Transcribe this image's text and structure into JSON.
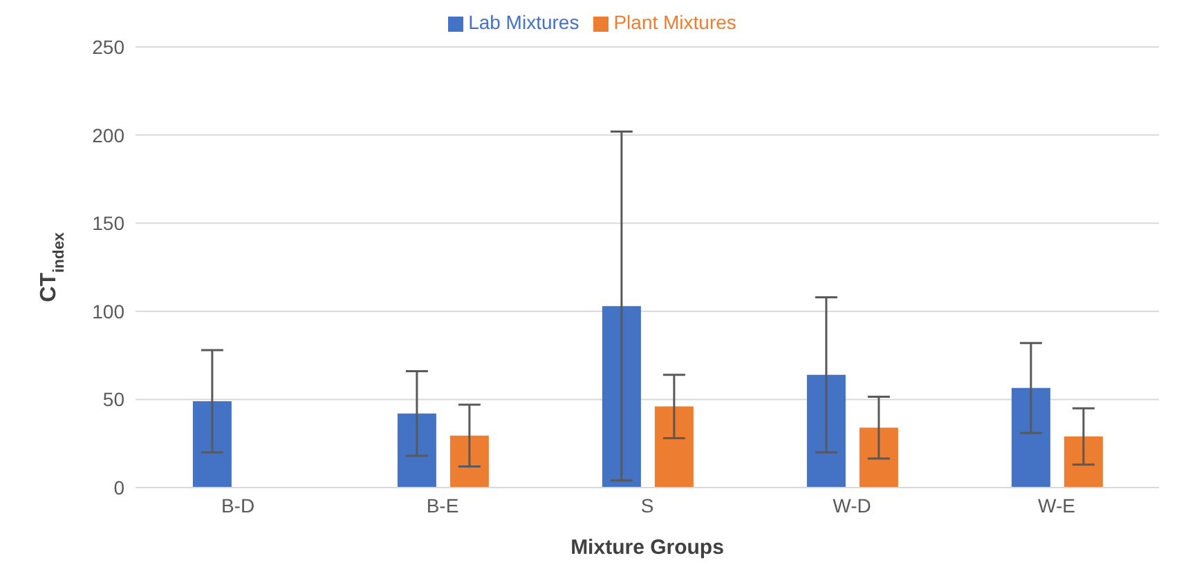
{
  "chart_data": {
    "type": "bar",
    "xlabel": "Mixture Groups",
    "ylabel": "CT$_{index}$",
    "categories": [
      "B-D",
      "B-E",
      "S",
      "W-D",
      "W-E"
    ],
    "series": [
      {
        "name": "Lab Mixtures",
        "color": "#4472c4",
        "values": [
          49,
          42,
          103,
          64,
          56.5
        ],
        "errors": [
          29,
          24,
          99,
          44,
          25.5
        ]
      },
      {
        "name": "Plant Mixtures",
        "color": "#ed7d31",
        "values": [
          null,
          29.5,
          46,
          34,
          29
        ],
        "errors": [
          null,
          17.5,
          18,
          17.5,
          16
        ]
      }
    ],
    "ylim": [
      0,
      250
    ],
    "yticks": [
      0,
      50,
      100,
      150,
      200,
      250
    ],
    "grid": "y",
    "legend": "top"
  }
}
